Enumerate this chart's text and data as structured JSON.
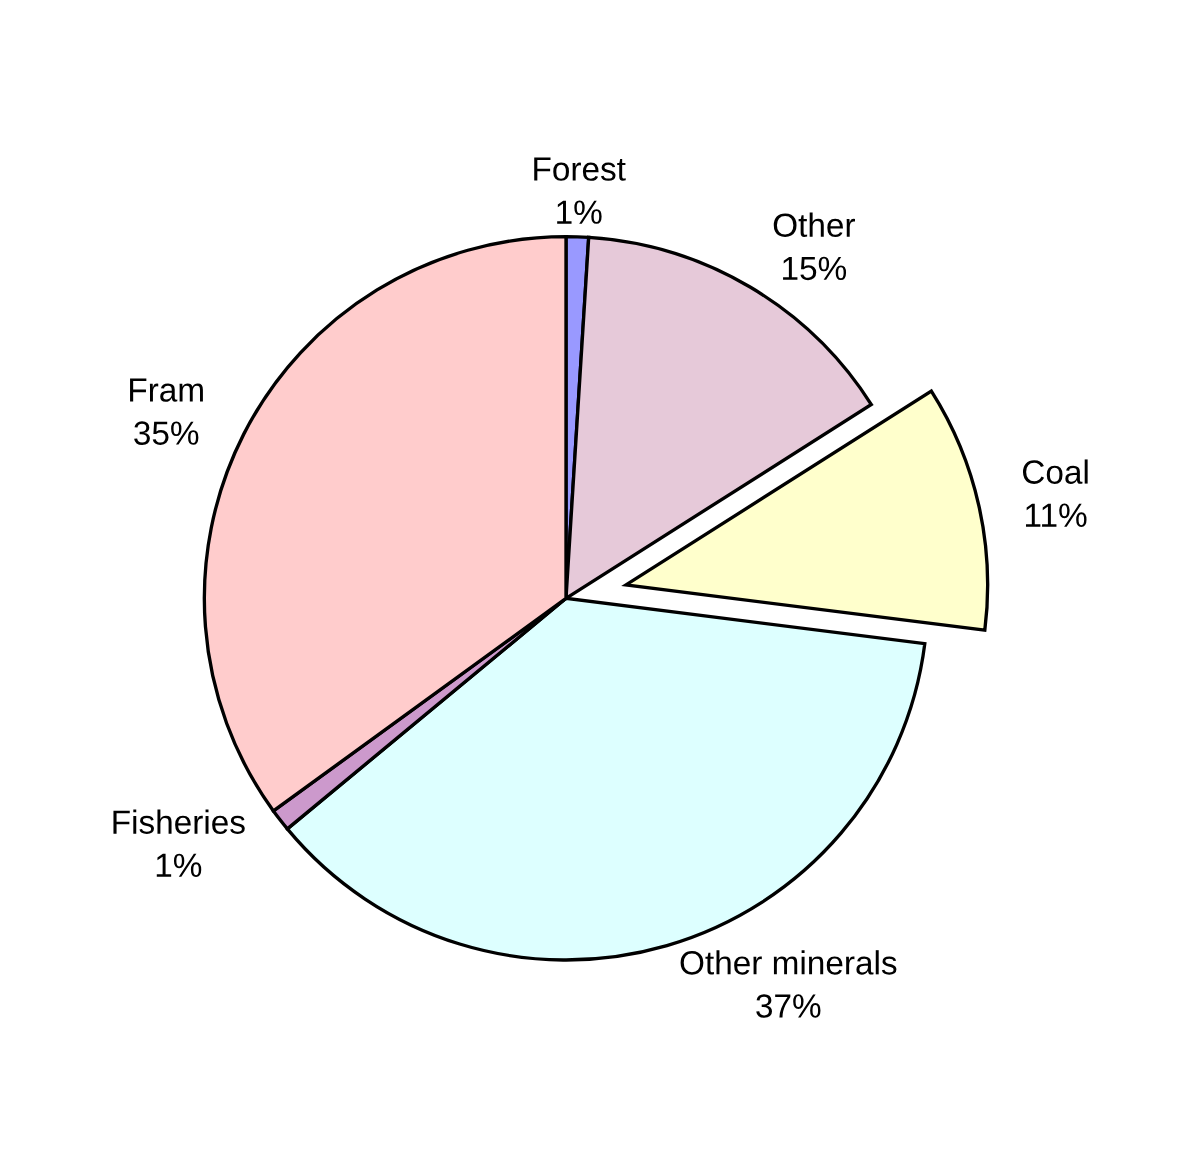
{
  "chart_data": {
    "type": "pie",
    "categories": [
      "Forest",
      "Other",
      "Coal",
      "Other minerals",
      "Fisheries",
      "Fram"
    ],
    "values": [
      1,
      15,
      11,
      37,
      1,
      35
    ],
    "value_labels": [
      "1%",
      "15%",
      "11%",
      "37%",
      "1%",
      "35%"
    ],
    "colors": [
      "#9999ff",
      "#e6c9d9",
      "#ffffcc",
      "#ddffff",
      "#cc99cc",
      "#ffcccc"
    ],
    "legend": false
  }
}
